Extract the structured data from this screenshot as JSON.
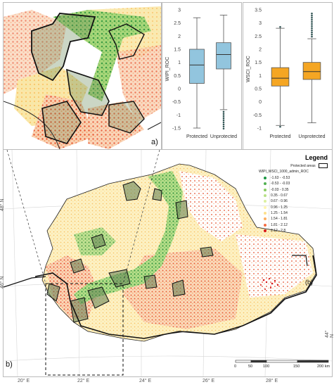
{
  "panel_labels": {
    "a": "a)",
    "b": "b)"
  },
  "boxplot_protected_unprotected_1": {
    "ylabel": "WIPI_ROC",
    "categories": [
      "Protected",
      "Unprotected"
    ],
    "yticks": [
      "3",
      "2.5",
      "2",
      "1.5",
      "1",
      "0.5",
      "0",
      "-0.5",
      "-1",
      "-1.5"
    ],
    "color": "#92c5de"
  },
  "boxplot_protected_unprotected_2": {
    "ylabel": "WSCI_ROC",
    "categories": [
      "Protected",
      "Unprotected"
    ],
    "yticks": [
      "3.5",
      "3",
      "2.5",
      "2",
      "1.5",
      "1",
      "0.5",
      "0",
      "-0.5",
      "-1"
    ],
    "color": "#f5a623"
  },
  "chart_data": [
    {
      "type": "box",
      "ylabel": "WIPI_ROC",
      "ylim": [
        -1.5,
        3
      ],
      "categories": [
        "Protected",
        "Unprotected"
      ],
      "boxes": [
        {
          "name": "Protected",
          "whisker_low": -1.5,
          "q1": 0.2,
          "median": 0.9,
          "q3": 1.5,
          "whisker_high": 2.7
        },
        {
          "name": "Unprotected",
          "whisker_low": -0.8,
          "q1": 0.75,
          "median": 1.3,
          "q3": 1.75,
          "whisker_high": 2.8,
          "outliers_low_to": -1.6
        }
      ]
    },
    {
      "type": "box",
      "ylabel": "WSCI_ROC",
      "ylim": [
        -1,
        3.5
      ],
      "categories": [
        "Protected",
        "Unprotected"
      ],
      "boxes": [
        {
          "name": "Protected",
          "whisker_low": -0.9,
          "q1": 0.6,
          "median": 0.9,
          "q3": 1.3,
          "whisker_high": 2.8,
          "outliers": [
            2.85,
            -0.95
          ]
        },
        {
          "name": "Unprotected",
          "whisker_low": -0.8,
          "q1": 0.85,
          "median": 1.15,
          "q3": 1.5,
          "whisker_high": 2.4,
          "outliers_high_to": 3.4,
          "outliers_low_to": -0.85
        }
      ]
    }
  ],
  "legend": {
    "title": "Legend",
    "protected_label": "Protected areas",
    "field": "WIPI_WSCI_1000_admin_ROC",
    "classes": [
      {
        "label": "-1.63 - -0.53",
        "color": "#1a9641"
      },
      {
        "label": "-0.53 - -0.03",
        "color": "#52b151"
      },
      {
        "label": "-0.03 - 0.35",
        "color": "#8acc62"
      },
      {
        "label": "0.35 - 0.67",
        "color": "#b8e186"
      },
      {
        "label": "0.67 - 0.96",
        "color": "#dbf0a0"
      },
      {
        "label": "0.96 - 1.25",
        "color": "#fff6b0"
      },
      {
        "label": "1.25 - 1.54",
        "color": "#fee08b"
      },
      {
        "label": "1.54 - 1.81",
        "color": "#fdae61"
      },
      {
        "label": "1.81 - 2.12",
        "color": "#f46d43"
      },
      {
        "label": "2.12 - 2.8",
        "color": "#d7191c"
      }
    ]
  },
  "graticule": {
    "lon": [
      "20° E",
      "22° E",
      "24° E",
      "26° E",
      "28° E"
    ],
    "lat": [
      "48° N",
      "46° N",
      "44° N"
    ]
  },
  "scalebar": {
    "ticks": [
      "0",
      "50",
      "100",
      "150",
      "200 km"
    ]
  },
  "map_label_b": "(b)"
}
